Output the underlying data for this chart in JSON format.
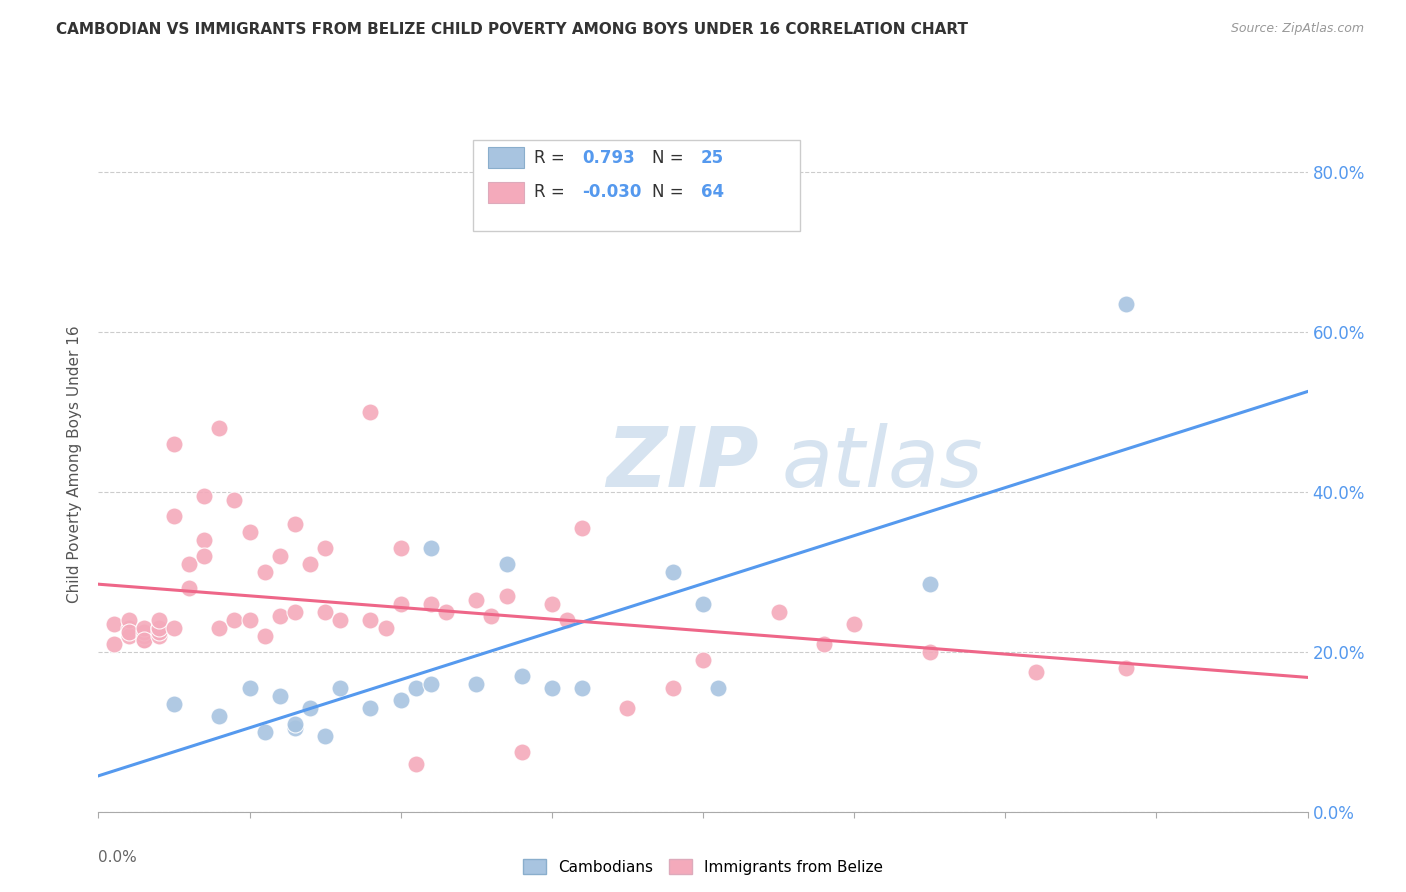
{
  "title": "CAMBODIAN VS IMMIGRANTS FROM BELIZE CHILD POVERTY AMONG BOYS UNDER 16 CORRELATION CHART",
  "source": "Source: ZipAtlas.com",
  "ylabel": "Child Poverty Among Boys Under 16",
  "xlim": [
    0.0,
    0.08
  ],
  "ylim": [
    0.0,
    0.87
  ],
  "yticks": [
    0.0,
    0.2,
    0.4,
    0.6,
    0.8
  ],
  "blue_color": "#A8C4E0",
  "pink_color": "#F4AABB",
  "line_blue": "#5599EE",
  "line_pink": "#EE6688",
  "right_label_color": "#5599EE",
  "watermark_zip_color": "#C5D8EA",
  "watermark_atlas_color": "#C5D8EA",
  "background_color": "#FFFFFF",
  "grid_color": "#CCCCCC",
  "title_color": "#333333",
  "ylabel_color": "#555555",
  "source_color": "#999999",
  "cambodians_x": [
    0.005,
    0.008,
    0.01,
    0.011,
    0.012,
    0.013,
    0.013,
    0.014,
    0.015,
    0.016,
    0.018,
    0.02,
    0.021,
    0.022,
    0.022,
    0.025,
    0.027,
    0.028,
    0.03,
    0.032,
    0.038,
    0.04,
    0.041,
    0.055,
    0.068
  ],
  "cambodians_y": [
    0.135,
    0.12,
    0.155,
    0.1,
    0.145,
    0.105,
    0.11,
    0.13,
    0.095,
    0.155,
    0.13,
    0.14,
    0.155,
    0.16,
    0.33,
    0.16,
    0.31,
    0.17,
    0.155,
    0.155,
    0.3,
    0.26,
    0.155,
    0.285,
    0.635
  ],
  "belize_x": [
    0.001,
    0.001,
    0.002,
    0.002,
    0.002,
    0.002,
    0.003,
    0.003,
    0.003,
    0.003,
    0.003,
    0.004,
    0.004,
    0.004,
    0.004,
    0.004,
    0.005,
    0.005,
    0.005,
    0.006,
    0.006,
    0.007,
    0.007,
    0.007,
    0.008,
    0.008,
    0.009,
    0.009,
    0.01,
    0.01,
    0.011,
    0.011,
    0.012,
    0.012,
    0.013,
    0.013,
    0.014,
    0.015,
    0.015,
    0.016,
    0.018,
    0.018,
    0.019,
    0.02,
    0.02,
    0.021,
    0.022,
    0.023,
    0.025,
    0.026,
    0.027,
    0.028,
    0.03,
    0.031,
    0.032,
    0.035,
    0.038,
    0.04,
    0.045,
    0.048,
    0.05,
    0.055,
    0.062,
    0.068
  ],
  "belize_y": [
    0.235,
    0.21,
    0.23,
    0.22,
    0.24,
    0.225,
    0.215,
    0.22,
    0.225,
    0.23,
    0.215,
    0.23,
    0.22,
    0.225,
    0.23,
    0.24,
    0.37,
    0.23,
    0.46,
    0.31,
    0.28,
    0.34,
    0.32,
    0.395,
    0.23,
    0.48,
    0.24,
    0.39,
    0.35,
    0.24,
    0.22,
    0.3,
    0.32,
    0.245,
    0.36,
    0.25,
    0.31,
    0.25,
    0.33,
    0.24,
    0.5,
    0.24,
    0.23,
    0.26,
    0.33,
    0.06,
    0.26,
    0.25,
    0.265,
    0.245,
    0.27,
    0.075,
    0.26,
    0.24,
    0.355,
    0.13,
    0.155,
    0.19,
    0.25,
    0.21,
    0.235,
    0.2,
    0.175,
    0.18
  ],
  "blue_line_x0": 0.0,
  "blue_line_x1": 0.08,
  "pink_line_x0": 0.0,
  "pink_line_x1": 0.08
}
